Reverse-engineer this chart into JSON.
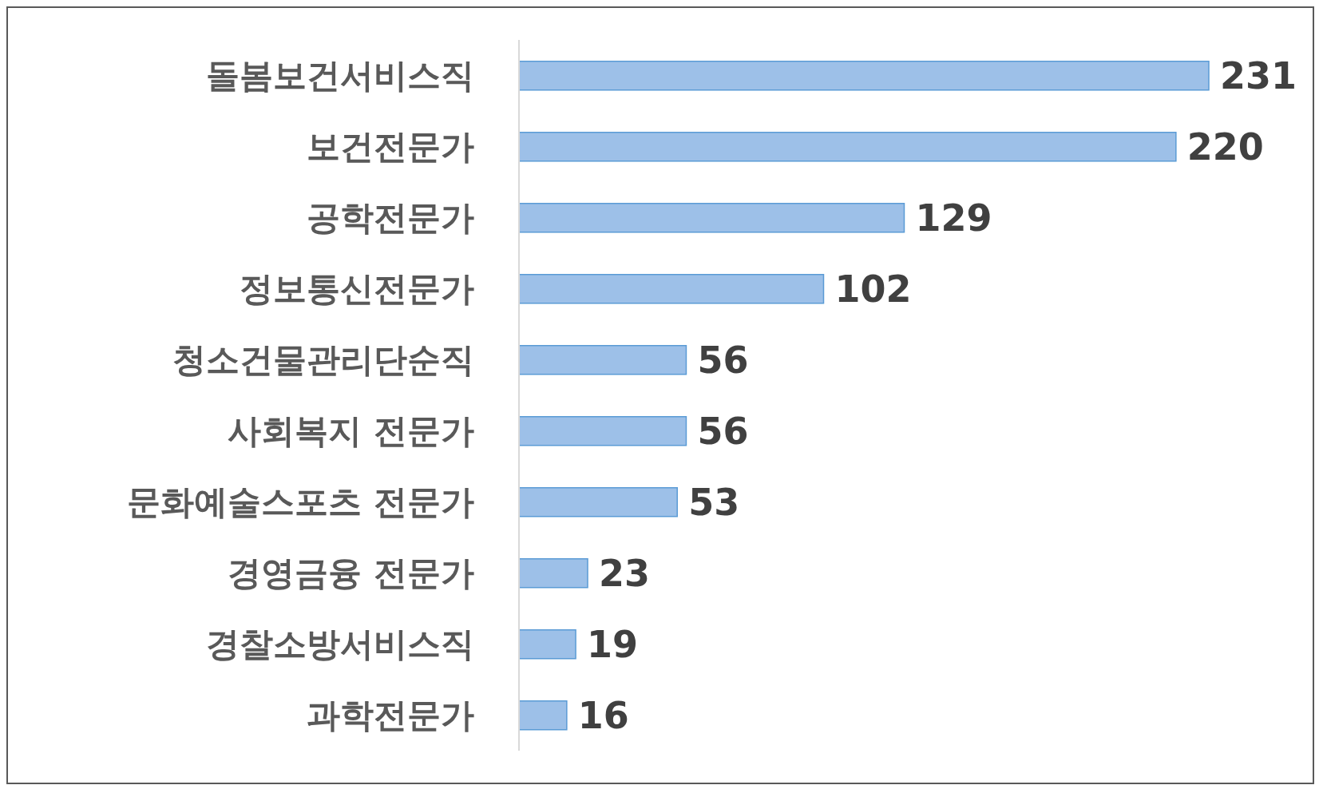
{
  "chart_data": {
    "type": "bar",
    "orientation": "horizontal",
    "categories": [
      "돌봄보건서비스직",
      "보건전문가",
      "공학전문가",
      "정보통신전문가",
      "청소건물관리단순직",
      "사회복지 전문가",
      "문화예술스포츠 전문가",
      "경영금융 전문가",
      "경찰소방서비스직",
      "과학전문가"
    ],
    "values": [
      231,
      220,
      129,
      102,
      56,
      56,
      53,
      23,
      19,
      16
    ],
    "color": "#9dc0e8",
    "data_labels": true
  }
}
